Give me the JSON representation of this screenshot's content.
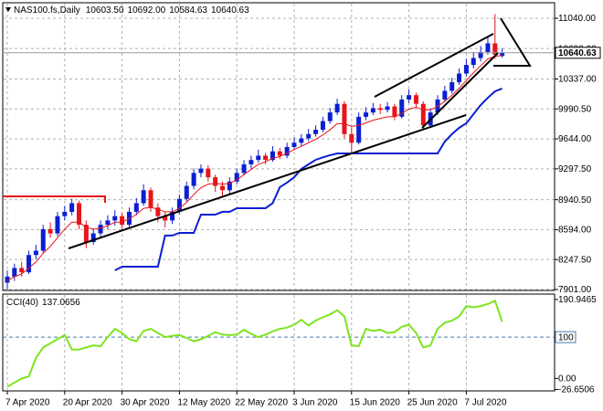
{
  "chart_data": [
    {
      "type": "candlestick",
      "title": "NAS100.fs,Daily",
      "last_labels": {
        "open": "10603.50",
        "high": "10692.00",
        "low": "10584.63",
        "close": "10640.63"
      },
      "categories": [
        "7 Apr 2020",
        null,
        null,
        null,
        null,
        null,
        null,
        null,
        "20 Apr 2020",
        null,
        null,
        null,
        null,
        null,
        null,
        null,
        "30 Apr 2020",
        null,
        null,
        null,
        null,
        null,
        null,
        null,
        "12 May 2020",
        null,
        null,
        null,
        null,
        null,
        null,
        null,
        "22 May 2020",
        null,
        null,
        null,
        null,
        null,
        null,
        null,
        "3 Jun 2020",
        null,
        null,
        null,
        null,
        null,
        null,
        null,
        "15 Jun 2020",
        null,
        null,
        null,
        null,
        null,
        null,
        null,
        "25 Jun 2020",
        null,
        null,
        null,
        null,
        null,
        null,
        null,
        "7 Jul 2020",
        null,
        null,
        null,
        null,
        null
      ],
      "open": [
        7980,
        8050,
        8150,
        8100,
        8300,
        8350,
        8600,
        8550,
        8750,
        8800,
        8900,
        8650,
        8450,
        8550,
        8650,
        8700,
        8750,
        8650,
        8800,
        8900,
        9050,
        8850,
        8750,
        8700,
        8800,
        8950,
        9100,
        9250,
        9300,
        9200,
        9100,
        9050,
        9150,
        9250,
        9350,
        9400,
        9450,
        9400,
        9500,
        9450,
        9550,
        9600,
        9650,
        9700,
        9750,
        9850,
        9950,
        10050,
        9700,
        9600,
        9900,
        9950,
        10000,
        9980,
        10020,
        9900,
        10100,
        10150,
        10050,
        9800,
        9950,
        10100,
        10200,
        10300,
        10400,
        10500,
        10580,
        10650,
        10750,
        10603.5
      ],
      "high": [
        8120,
        8200,
        8220,
        8350,
        8420,
        8650,
        8680,
        8800,
        8870,
        8950,
        8930,
        8700,
        8600,
        8700,
        8760,
        8820,
        8790,
        8850,
        8960,
        9120,
        9080,
        8900,
        8800,
        8850,
        9000,
        9150,
        9300,
        9350,
        9340,
        9230,
        9150,
        9200,
        9300,
        9400,
        9450,
        9520,
        9480,
        9560,
        9540,
        9600,
        9660,
        9700,
        9760,
        9800,
        9900,
        10000,
        10110,
        10080,
        9780,
        9950,
        10010,
        10060,
        10050,
        10070,
        10050,
        10150,
        10220,
        10180,
        10080,
        10000,
        10150,
        10260,
        10350,
        10460,
        10570,
        10650,
        10720,
        10830,
        11090,
        10692
      ],
      "low": [
        7900,
        8000,
        8050,
        8080,
        8250,
        8320,
        8500,
        8520,
        8700,
        8760,
        8600,
        8380,
        8420,
        8500,
        8600,
        8640,
        8600,
        8620,
        8760,
        8870,
        8800,
        8680,
        8620,
        8660,
        8770,
        8920,
        9060,
        9200,
        9150,
        9030,
        8980,
        9010,
        9120,
        9220,
        9300,
        9370,
        9350,
        9380,
        9410,
        9420,
        9520,
        9560,
        9620,
        9670,
        9720,
        9820,
        9920,
        9650,
        9470,
        9580,
        9860,
        9920,
        9930,
        9950,
        9860,
        9880,
        10060,
        10000,
        9750,
        9780,
        9920,
        10070,
        10170,
        10270,
        10370,
        10460,
        10540,
        10620,
        10570,
        10584.63
      ],
      "close": [
        8050,
        8150,
        8100,
        8300,
        8350,
        8600,
        8550,
        8750,
        8800,
        8900,
        8650,
        8450,
        8550,
        8650,
        8700,
        8750,
        8650,
        8800,
        8900,
        9050,
        8850,
        8750,
        8700,
        8800,
        8950,
        9100,
        9250,
        9300,
        9200,
        9100,
        9050,
        9150,
        9250,
        9350,
        9400,
        9450,
        9400,
        9500,
        9450,
        9550,
        9600,
        9650,
        9700,
        9750,
        9850,
        9950,
        10050,
        9700,
        9600,
        9900,
        9950,
        10000,
        9980,
        10020,
        9900,
        10100,
        10150,
        10050,
        9800,
        9950,
        10100,
        10200,
        10300,
        10400,
        10500,
        10580,
        10650,
        10750,
        10620,
        10640.63
      ],
      "up_color": "#0a1fd0",
      "down_color": "#e8141a",
      "series": [
        {
          "color": "#e8141a",
          "values": [
            8000,
            8050,
            8080,
            8150,
            8220,
            8320,
            8400,
            8500,
            8600,
            8680,
            8680,
            8620,
            8600,
            8610,
            8640,
            8680,
            8680,
            8720,
            8770,
            8840,
            8850,
            8830,
            8800,
            8800,
            8840,
            8910,
            9000,
            9080,
            9120,
            9130,
            9120,
            9130,
            9170,
            9230,
            9290,
            9350,
            9380,
            9420,
            9440,
            9480,
            9520,
            9560,
            9600,
            9640,
            9690,
            9750,
            9820,
            9820,
            9790,
            9800,
            9830,
            9860,
            9880,
            9900,
            9900,
            9940,
            9990,
            10010,
            9980,
            9980,
            10020,
            10080,
            10150,
            10230,
            10320,
            10410,
            10490,
            10570,
            10600,
            10610
          ]
        },
        {
          "color": "#0a1fd0",
          "values": [
            null,
            null,
            null,
            null,
            null,
            null,
            null,
            null,
            null,
            null,
            null,
            null,
            null,
            null,
            null,
            8123,
            8165,
            8165,
            8165,
            8165,
            8165,
            8165,
            8525,
            8525,
            8556,
            8556,
            8556,
            8768,
            8768,
            8768,
            8800,
            8800,
            8842,
            8842,
            8842,
            8842,
            8842,
            8900,
            9085,
            9138,
            9200,
            9296,
            9350,
            9402,
            9430,
            9455,
            9476,
            9476,
            9476,
            9476,
            9476,
            9476,
            9476,
            9476,
            9476,
            9476,
            9476,
            9476,
            9476,
            9476,
            9476,
            9613,
            9700,
            9772,
            9825,
            9930,
            10036,
            10120,
            10195,
            10227
          ]
        }
      ],
      "ylim": [
        7890,
        11220
      ],
      "yticks": [
        {
          "value": 7901,
          "label": "7901.00"
        },
        {
          "value": 8247.5,
          "label": "8247.50"
        },
        {
          "value": 8594,
          "label": "8594.00"
        },
        {
          "value": 8940.5,
          "label": "8940.50"
        },
        {
          "value": 9297.5,
          "label": "9297.50"
        },
        {
          "value": 9644,
          "label": "9644.00"
        },
        {
          "value": 9990.5,
          "label": "9990.50"
        },
        {
          "value": 10337,
          "label": "10337.00"
        },
        {
          "value": 10690,
          "label": "10690.00"
        },
        {
          "value": 11040,
          "label": "11040.00"
        }
      ],
      "grid": true
    },
    {
      "type": "line",
      "title": "CCI(40)",
      "series": [
        {
          "color": "#7ce51e",
          "values": [
            -20,
            -10,
            0,
            5,
            50,
            75,
            85,
            95,
            105,
            70,
            70,
            75,
            80,
            78,
            100,
            120,
            110,
            95,
            90,
            115,
            120,
            110,
            100,
            103,
            105,
            98,
            90,
            95,
            103,
            112,
            106,
            105,
            106,
            118,
            108,
            100,
            106,
            114,
            120,
            123,
            130,
            142,
            128,
            140,
            148,
            155,
            165,
            150,
            80,
            78,
            120,
            115,
            118,
            110,
            112,
            125,
            130,
            110,
            75,
            80,
            120,
            135,
            140,
            150,
            175,
            172,
            175,
            180,
            188,
            137.0656
          ]
        }
      ],
      "ylim": [
        -30,
        204
      ],
      "yticks": [
        190.9465,
        100,
        {
          "value": 0,
          "label": "0.00"
        },
        -26.6506
      ],
      "levels": [
        100
      ],
      "level_color": "#4a7aa8",
      "grid": false
    }
  ]
}
